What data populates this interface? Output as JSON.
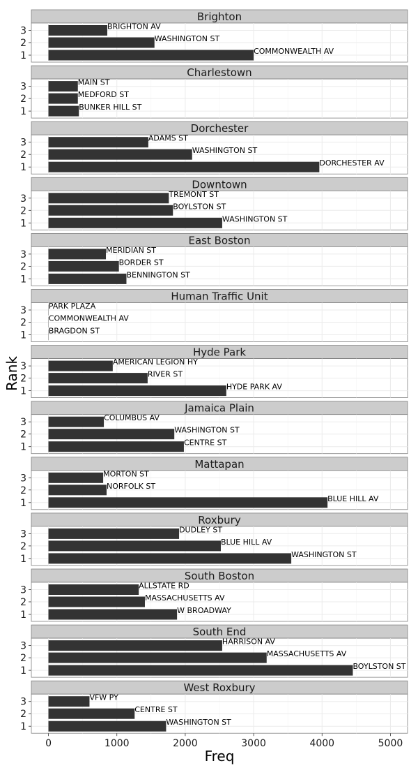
{
  "chart_data": {
    "type": "bar",
    "orientation": "horizontal",
    "faceted": true,
    "xlabel": "Freq",
    "ylabel": "Rank",
    "xlim": [
      -250,
      5250
    ],
    "x_ticks": [
      0,
      1000,
      2000,
      3000,
      4000,
      5000
    ],
    "y_ticks": [
      "1",
      "2",
      "3"
    ],
    "grid": true,
    "colors": {
      "bar": "#333333",
      "strip": "#cccccc",
      "panel_border": "#7f7f7f",
      "grid": "#ebebeb"
    },
    "facets": [
      {
        "name": "Brighton",
        "bars": [
          {
            "rank": "1",
            "label": "COMMONWEALTH AV",
            "value": 3000
          },
          {
            "rank": "2",
            "label": "WASHINGTON ST",
            "value": 1550
          },
          {
            "rank": "3",
            "label": "BRIGHTON AV",
            "value": 860
          }
        ]
      },
      {
        "name": "Charlestown",
        "bars": [
          {
            "rank": "1",
            "label": "BUNKER HILL ST",
            "value": 445
          },
          {
            "rank": "2",
            "label": "MEDFORD ST",
            "value": 430
          },
          {
            "rank": "3",
            "label": "MAIN ST",
            "value": 430
          }
        ]
      },
      {
        "name": "Dorchester",
        "bars": [
          {
            "rank": "1",
            "label": "DORCHESTER AV",
            "value": 3960
          },
          {
            "rank": "2",
            "label": "WASHINGTON ST",
            "value": 2100
          },
          {
            "rank": "3",
            "label": "ADAMS ST",
            "value": 1460
          }
        ]
      },
      {
        "name": "Downtown",
        "bars": [
          {
            "rank": "1",
            "label": "WASHINGTON ST",
            "value": 2540
          },
          {
            "rank": "2",
            "label": "BOYLSTON ST",
            "value": 1820
          },
          {
            "rank": "3",
            "label": "TREMONT ST",
            "value": 1760
          }
        ]
      },
      {
        "name": "East Boston",
        "bars": [
          {
            "rank": "1",
            "label": "BENNINGTON ST",
            "value": 1140
          },
          {
            "rank": "2",
            "label": "BORDER ST",
            "value": 1030
          },
          {
            "rank": "3",
            "label": "MERIDIAN ST",
            "value": 840
          }
        ]
      },
      {
        "name": "Human Traffic Unit",
        "bars": [
          {
            "rank": "1",
            "label": "BRAGDON ST",
            "value": 3
          },
          {
            "rank": "2",
            "label": "COMMONWEALTH AV",
            "value": 3
          },
          {
            "rank": "3",
            "label": "PARK PLAZA",
            "value": 3
          }
        ]
      },
      {
        "name": "Hyde Park",
        "bars": [
          {
            "rank": "1",
            "label": "HYDE PARK AV",
            "value": 2600
          },
          {
            "rank": "2",
            "label": "RIVER ST",
            "value": 1450
          },
          {
            "rank": "3",
            "label": "AMERICAN LEGION HY",
            "value": 940
          }
        ]
      },
      {
        "name": "Jamaica Plain",
        "bars": [
          {
            "rank": "1",
            "label": "CENTRE ST",
            "value": 1980
          },
          {
            "rank": "2",
            "label": "WASHINGTON ST",
            "value": 1840
          },
          {
            "rank": "3",
            "label": "COLUMBUS AV",
            "value": 810
          }
        ]
      },
      {
        "name": "Mattapan",
        "bars": [
          {
            "rank": "1",
            "label": "BLUE HILL AV",
            "value": 4080
          },
          {
            "rank": "2",
            "label": "NORFOLK ST",
            "value": 850
          },
          {
            "rank": "3",
            "label": "MORTON ST",
            "value": 800
          }
        ]
      },
      {
        "name": "Roxbury",
        "bars": [
          {
            "rank": "1",
            "label": "WASHINGTON ST",
            "value": 3550
          },
          {
            "rank": "2",
            "label": "BLUE HILL AV",
            "value": 2520
          },
          {
            "rank": "3",
            "label": "DUDLEY ST",
            "value": 1910
          }
        ]
      },
      {
        "name": "South Boston",
        "bars": [
          {
            "rank": "1",
            "label": "W BROADWAY",
            "value": 1880
          },
          {
            "rank": "2",
            "label": "MASSACHUSETTS AV",
            "value": 1410
          },
          {
            "rank": "3",
            "label": "ALLSTATE RD",
            "value": 1320
          }
        ]
      },
      {
        "name": "South End",
        "bars": [
          {
            "rank": "1",
            "label": "BOYLSTON ST",
            "value": 4450
          },
          {
            "rank": "2",
            "label": "MASSACHUSETTS AV",
            "value": 3190
          },
          {
            "rank": "3",
            "label": "HARRISON AV",
            "value": 2540
          }
        ]
      },
      {
        "name": "West Roxbury",
        "bars": [
          {
            "rank": "1",
            "label": "WASHINGTON ST",
            "value": 1720
          },
          {
            "rank": "2",
            "label": "CENTRE ST",
            "value": 1260
          },
          {
            "rank": "3",
            "label": "VFW PY",
            "value": 600
          }
        ]
      }
    ]
  }
}
